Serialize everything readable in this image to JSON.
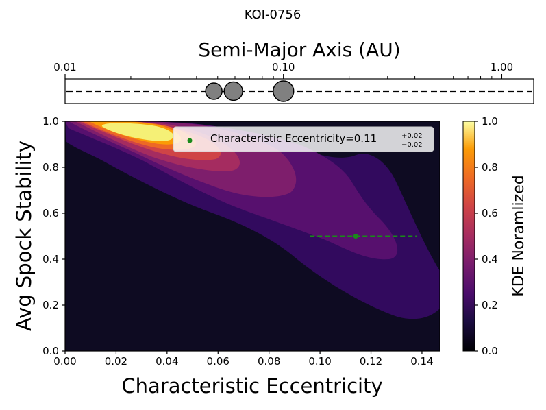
{
  "title": "KOI-0756",
  "chart_data": [
    {
      "type": "scatter",
      "panel": "orbit-strip",
      "xlabel": "Semi-Major Axis (AU)",
      "xscale": "log",
      "xlim": [
        0.01,
        1.4
      ],
      "xtick_labels": [
        "0.01",
        "0.10",
        "1.00"
      ],
      "xtick_values": [
        0.01,
        0.1,
        1.0
      ],
      "planets": [
        {
          "a": 0.048,
          "size": 1.0
        },
        {
          "a": 0.059,
          "size": 1.12
        },
        {
          "a": 0.1,
          "size": 1.25
        }
      ],
      "dashed_line": true
    },
    {
      "type": "heatmap",
      "panel": "kde",
      "xlabel": "Characteristic Eccentricity",
      "ylabel": "Avg Spock Stability",
      "xlim": [
        0.0,
        0.147
      ],
      "ylim": [
        0.0,
        1.0
      ],
      "xtick_labels": [
        "0.00",
        "0.02",
        "0.04",
        "0.06",
        "0.08",
        "0.10",
        "0.12",
        "0.14"
      ],
      "xtick_values": [
        0.0,
        0.02,
        0.04,
        0.06,
        0.08,
        0.1,
        0.12,
        0.14
      ],
      "ytick_labels": [
        "0.0",
        "0.2",
        "0.4",
        "0.6",
        "0.8",
        "1.0"
      ],
      "ytick_values": [
        0.0,
        0.2,
        0.4,
        0.6,
        0.8,
        1.0
      ],
      "colormap": "inferno",
      "levels": [
        0.11,
        0.22,
        0.33,
        0.44,
        0.56,
        0.67,
        0.78,
        0.89
      ],
      "level_colors": [
        "#110a30",
        "#320a5e",
        "#57106e",
        "#7e1e6c",
        "#a52c60",
        "#cf4446",
        "#ed6925",
        "#fb9b06",
        "#f7d13d"
      ],
      "highlight_color": "#f5f076",
      "background_color": "#0e0b22",
      "point": {
        "x": 0.114,
        "y": 0.5,
        "xerr_low": 0.018,
        "xerr_high": 0.024,
        "color": "#1a8a1a"
      },
      "legend": {
        "position": "top-right",
        "text": "Characteristic Eccentricity=0.11",
        "sup": "+0.02",
        "sub": "−0.02"
      },
      "colorbar": {
        "label": "KDE Noramlized",
        "tick_labels": [
          "0.0",
          "0.2",
          "0.4",
          "0.6",
          "0.8",
          "1.0"
        ],
        "tick_values": [
          0.0,
          0.2,
          0.4,
          0.6,
          0.8,
          1.0
        ]
      }
    }
  ]
}
